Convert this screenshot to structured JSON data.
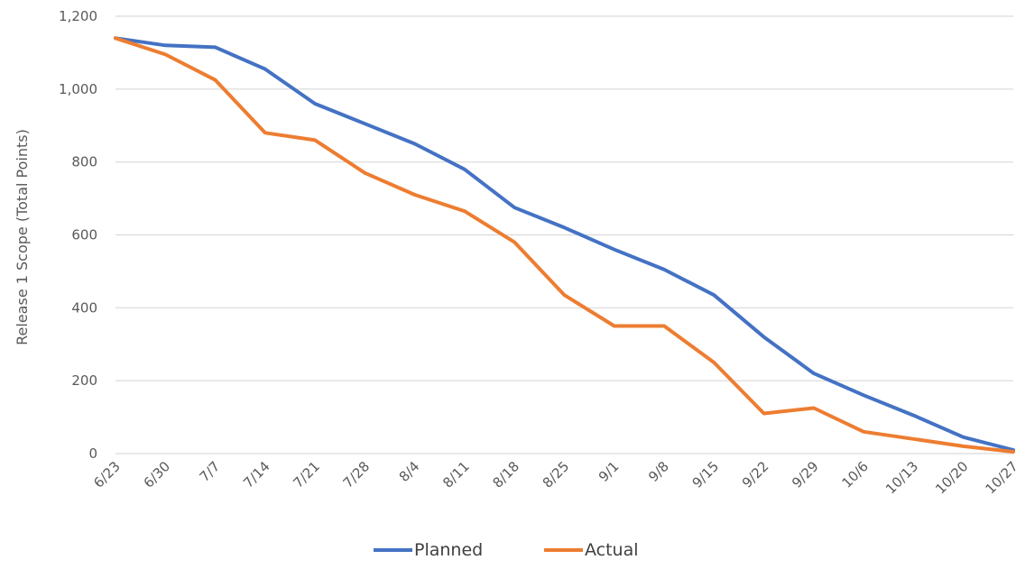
{
  "chart_data": {
    "type": "line",
    "title": "",
    "xlabel": "",
    "ylabel": "Release 1 Scope (Total Points)",
    "ylim": [
      0,
      1200
    ],
    "yticks": [
      0,
      200,
      400,
      600,
      800,
      1000,
      1200
    ],
    "ytick_labels": [
      "0",
      "200",
      "400",
      "600",
      "800",
      "1,000",
      "1,200"
    ],
    "categories": [
      "6/23",
      "6/30",
      "7/7",
      "7/14",
      "7/21",
      "7/28",
      "8/4",
      "8/11",
      "8/18",
      "8/25",
      "9/1",
      "9/8",
      "9/15",
      "9/22",
      "9/29",
      "10/6",
      "10/13",
      "10/20",
      "10/27"
    ],
    "grid": true,
    "legend_position": "bottom",
    "series": [
      {
        "name": "Planned",
        "color": "#4472c4",
        "values": [
          1140,
          1120,
          1115,
          1055,
          960,
          905,
          850,
          780,
          675,
          620,
          560,
          505,
          435,
          320,
          220,
          160,
          105,
          45,
          10
        ]
      },
      {
        "name": "Actual",
        "color": "#ed7d31",
        "values": [
          1140,
          1095,
          1025,
          880,
          860,
          770,
          710,
          665,
          580,
          435,
          350,
          350,
          250,
          110,
          125,
          60,
          40,
          20,
          5
        ]
      }
    ]
  }
}
